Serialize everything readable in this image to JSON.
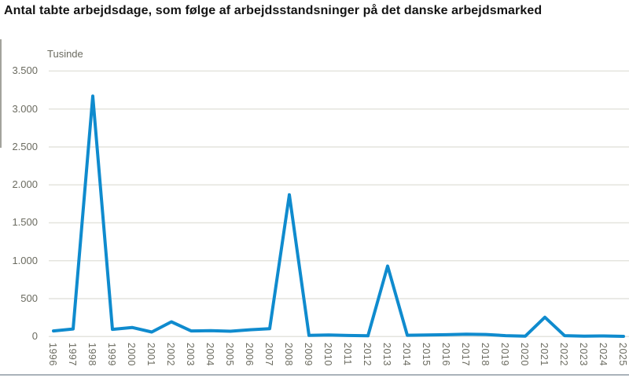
{
  "page": {
    "background_color": "#ffffff"
  },
  "chart_data": {
    "type": "line",
    "title": "Antal tabte arbejdsdage, som følge af arbejdsstandsninger på det danske arbejdsmarked",
    "unit_label": "Tusinde",
    "xlabel": "",
    "ylabel": "Tusinde",
    "x": [
      1996,
      1997,
      1998,
      1999,
      2000,
      2001,
      2002,
      2003,
      2004,
      2005,
      2006,
      2007,
      2008,
      2009,
      2010,
      2011,
      2012,
      2013,
      2014,
      2015,
      2016,
      2017,
      2018,
      2019,
      2020,
      2021,
      2022,
      2023,
      2024,
      2025
    ],
    "series": [
      {
        "name": "Antal tabte arbejdsdage (tusinde)",
        "values": [
          75,
          100,
          3170,
          95,
          120,
          60,
          195,
          75,
          78,
          70,
          90,
          105,
          1870,
          16,
          22,
          15,
          10,
          930,
          18,
          22,
          25,
          32,
          28,
          12,
          5,
          255,
          12,
          6,
          8,
          3
        ]
      }
    ],
    "ylim": [
      0,
      3500
    ],
    "y_ticks": [
      0,
      500,
      1000,
      1500,
      2000,
      2500,
      3000,
      3500
    ],
    "y_tick_labels": [
      "0",
      "500",
      "1.000",
      "1.500",
      "2.000",
      "2.500",
      "3.000",
      "3.500"
    ],
    "grid": "horizontal",
    "legend": "none",
    "colors": {
      "line": "#0f8bce",
      "gridline": "#e4e4de",
      "tick_text": "#6b6b60",
      "title_text": "#141414",
      "bottom_rule": "#aab3ba"
    }
  }
}
